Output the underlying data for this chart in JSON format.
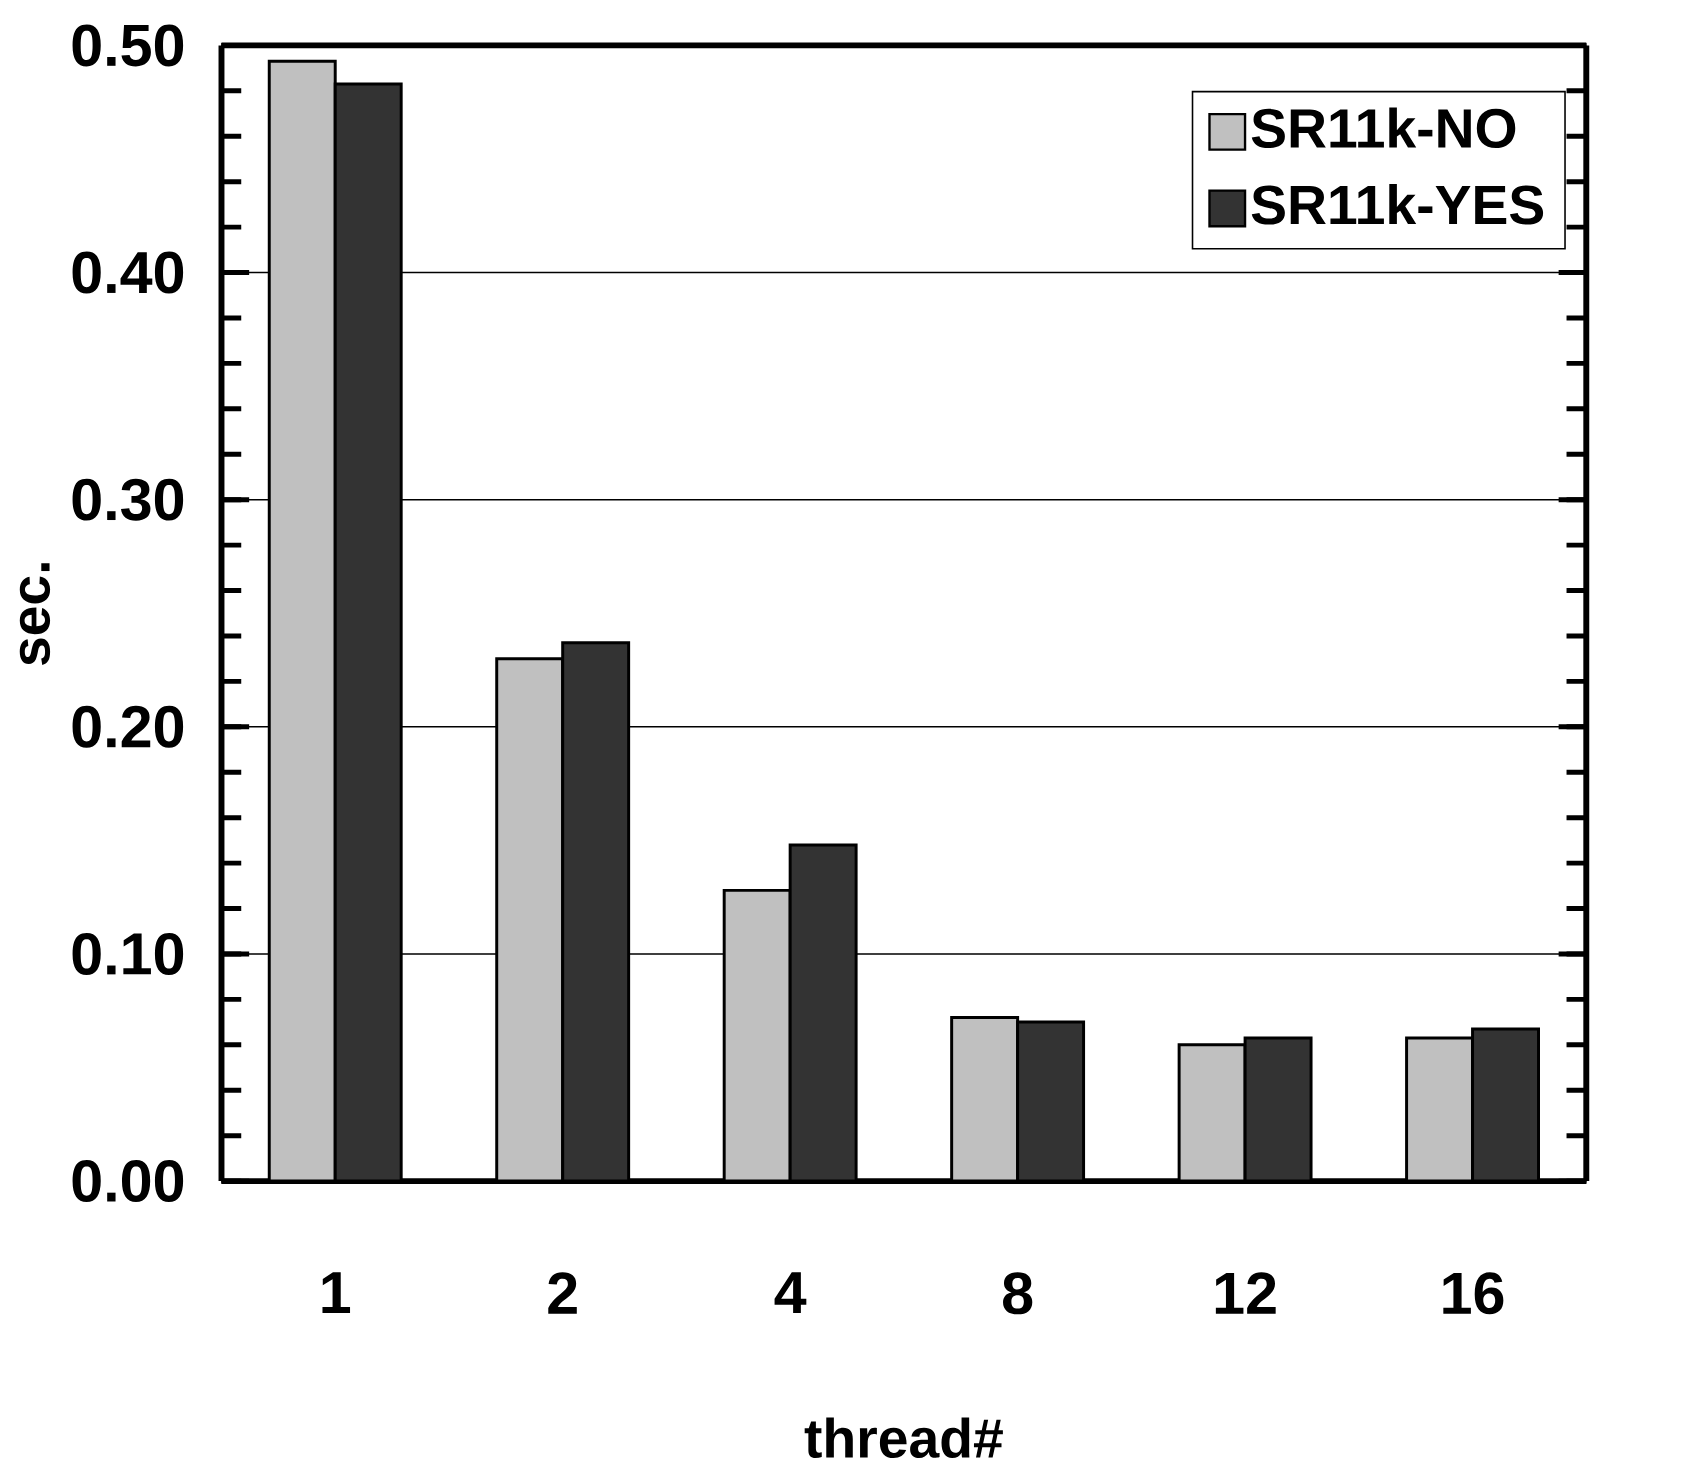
{
  "chart_data": {
    "type": "bar",
    "xlabel": "thread#",
    "ylabel": "sec.",
    "categories": [
      "1",
      "2",
      "4",
      "8",
      "12",
      "16"
    ],
    "series": [
      {
        "name": "SR11k-NO",
        "color": "#c0c0c0",
        "values": [
          0.493,
          0.23,
          0.128,
          0.072,
          0.06,
          0.063
        ]
      },
      {
        "name": "SR11k-YES",
        "color": "#333333",
        "values": [
          0.483,
          0.237,
          0.148,
          0.07,
          0.063,
          0.067
        ]
      }
    ],
    "ylim": [
      0,
      0.5
    ],
    "yticks": [
      {
        "value": 0,
        "label": "0.00"
      },
      {
        "value": 0.1,
        "label": "0.10"
      },
      {
        "value": 0.2,
        "label": "0.20"
      },
      {
        "value": 0.3,
        "label": "0.30"
      },
      {
        "value": 0.4,
        "label": "0.40"
      },
      {
        "value": 0.5,
        "label": "0.50"
      }
    ],
    "grid": "y",
    "legend": "top right"
  }
}
